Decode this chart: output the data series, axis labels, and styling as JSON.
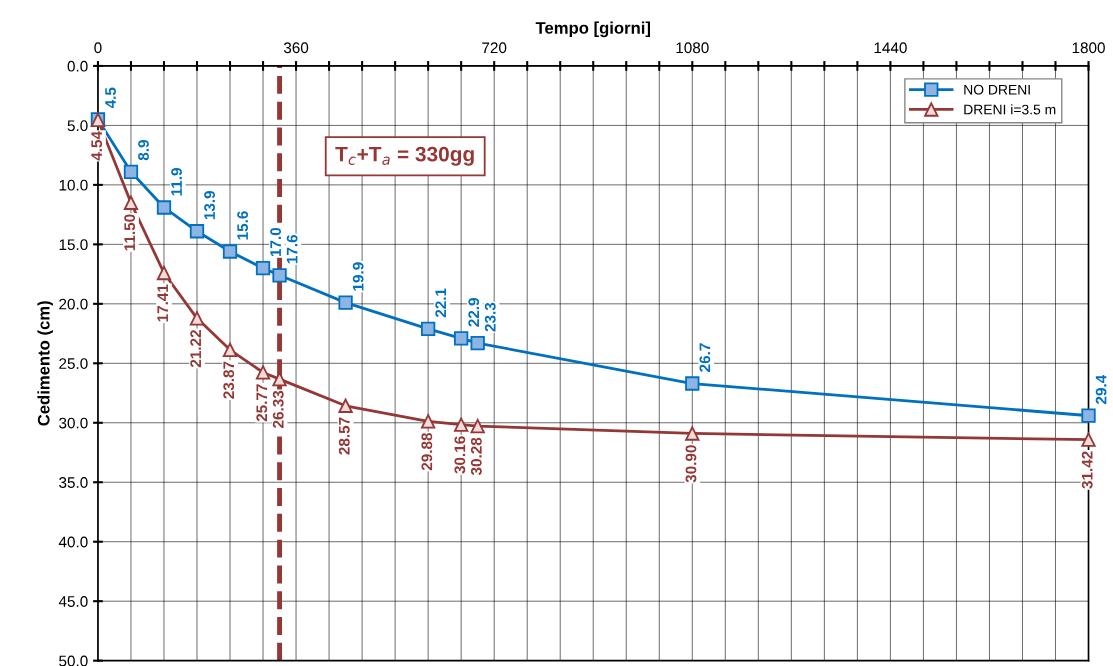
{
  "chart_data": {
    "type": "line",
    "xlabel": "Tempo [giorni]",
    "ylabel": "Cedimento (cm)",
    "xlim": [
      0,
      1800
    ],
    "ylim": [
      50,
      0
    ],
    "xticks": [
      0,
      {
        "value": 60,
        "label": null
      },
      {
        "value": 120,
        "label": null
      },
      {
        "value": 180,
        "label": null
      },
      {
        "value": 240,
        "label": null
      },
      {
        "value": 300,
        "label": null
      },
      360,
      {
        "value": 420,
        "label": null
      },
      {
        "value": 480,
        "label": null
      },
      {
        "value": 540,
        "label": null
      },
      {
        "value": 600,
        "label": null
      },
      {
        "value": 660,
        "label": null
      },
      720,
      {
        "value": 780,
        "label": null
      },
      {
        "value": 840,
        "label": null
      },
      {
        "value": 900,
        "label": null
      },
      {
        "value": 960,
        "label": null
      },
      {
        "value": 1020,
        "label": null
      },
      1080,
      {
        "value": 1140,
        "label": null
      },
      {
        "value": 1200,
        "label": null
      },
      {
        "value": 1260,
        "label": null
      },
      {
        "value": 1320,
        "label": null
      },
      {
        "value": 1380,
        "label": null
      },
      1440,
      {
        "value": 1500,
        "label": null
      },
      {
        "value": 1560,
        "label": null
      },
      {
        "value": 1620,
        "label": null
      },
      {
        "value": 1680,
        "label": null
      },
      {
        "value": 1740,
        "label": null
      },
      1800
    ],
    "yticks": [
      {
        "value": 0,
        "label": "0.0"
      },
      {
        "value": 5,
        "label": "5.0"
      },
      {
        "value": 10,
        "label": "10.0"
      },
      {
        "value": 15,
        "label": "15.0"
      },
      {
        "value": 20,
        "label": "20.0"
      },
      {
        "value": 25,
        "label": "25.0"
      },
      {
        "value": 30,
        "label": "30.0"
      },
      {
        "value": 35,
        "label": "35.0"
      },
      {
        "value": 40,
        "label": "40.0"
      },
      {
        "value": 45,
        "label": "45.0"
      },
      {
        "value": 50,
        "label": "50.0"
      }
    ],
    "x": [
      0,
      60,
      120,
      180,
      240,
      300,
      330,
      450,
      600,
      660,
      690,
      1080,
      1800
    ],
    "series": [
      {
        "name": "NO DRENI",
        "color": "#0070c0",
        "marker": "square",
        "values": [
          4.5,
          8.9,
          11.9,
          13.9,
          15.6,
          17.0,
          17.6,
          19.9,
          22.1,
          22.9,
          23.3,
          26.7,
          29.4
        ],
        "value_labels": [
          "4.5",
          "8.9",
          "11.9",
          "13.9",
          "15.6",
          "17.0",
          "17.6",
          "19.9",
          "22.1",
          "22.9",
          "23.3",
          "26.7",
          "29.4"
        ]
      },
      {
        "name": "DRENI i=3.5 m",
        "color": "#953735",
        "marker": "triangle",
        "values": [
          4.54,
          11.5,
          17.41,
          21.22,
          23.87,
          25.77,
          26.33,
          28.57,
          29.88,
          30.16,
          30.28,
          30.9,
          31.42
        ],
        "value_labels": [
          "4.54",
          "11.50",
          "17.41",
          "21.22",
          "23.87",
          "25.77",
          "26.33",
          "28.57",
          "29.88",
          "30.16",
          "30.28",
          "30.90",
          "31.42"
        ]
      }
    ],
    "ref_lines": [
      {
        "axis": "x",
        "value": 330,
        "label": "T$_{c}$+T$_{a}$ = 330gg",
        "color": "#953735",
        "line_style": "dashed"
      }
    ],
    "grid": true,
    "legend": "top right"
  }
}
